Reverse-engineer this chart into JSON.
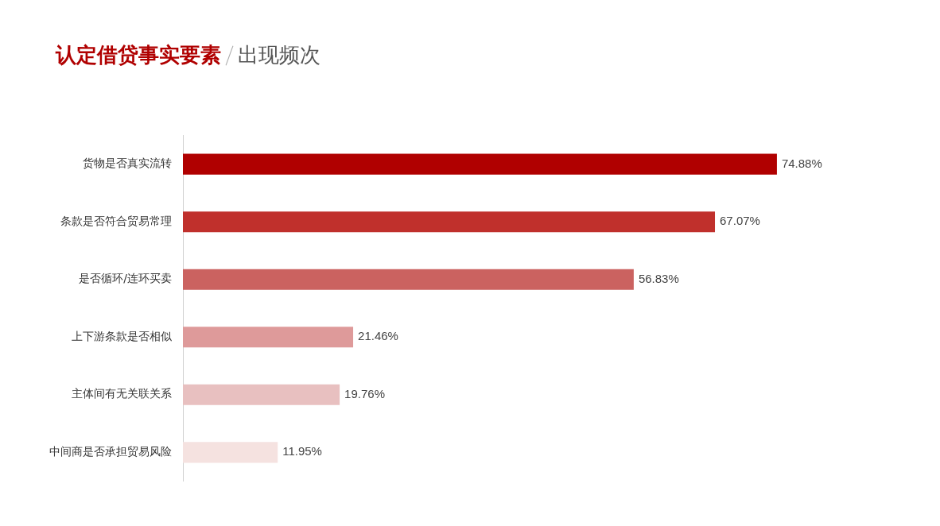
{
  "chart_data": {
    "type": "bar",
    "orientation": "horizontal",
    "title": "认定借贷事实要素",
    "subtitle": "出现频次",
    "categories": [
      "货物是否真实流转",
      "条款是否符合贸易常理",
      "是否循环/连环买卖",
      "上下游条款是否相似",
      "主体间有无关联关系",
      "中间商是否承担贸易风险"
    ],
    "values": [
      74.88,
      67.07,
      56.83,
      21.46,
      19.76,
      11.95
    ],
    "value_labels": [
      "74.88%",
      "67.07%",
      "56.83%",
      "21.46%",
      "19.76%",
      "11.95%"
    ],
    "colors": [
      "#b00000",
      "#c0302c",
      "#cb6260",
      "#de9a9a",
      "#e8c0c0",
      "#f5e2e0"
    ],
    "tick_labels": "y",
    "grid": false,
    "legend": false
  }
}
